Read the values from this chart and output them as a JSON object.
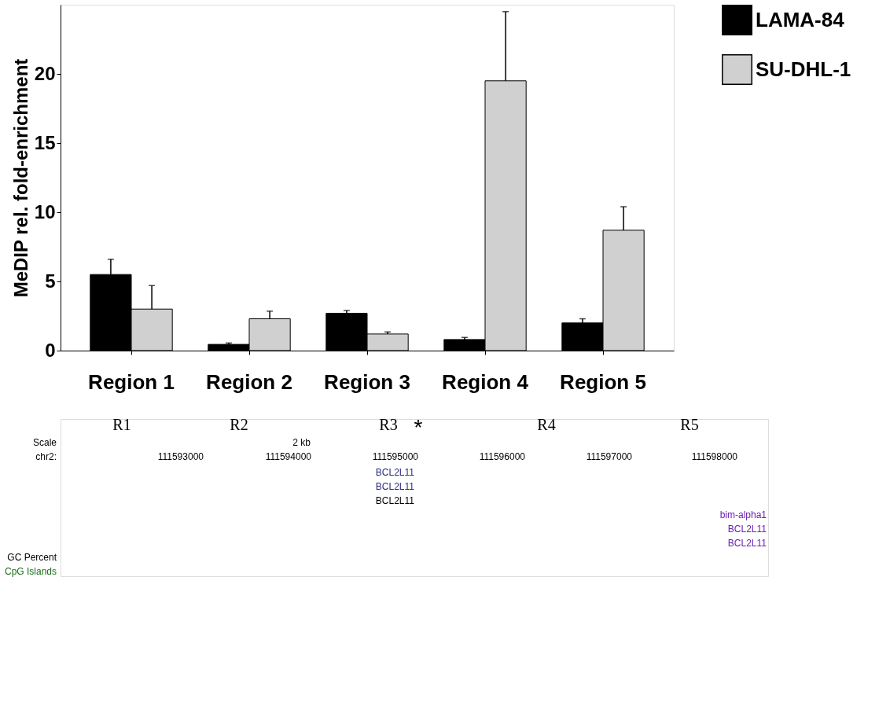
{
  "chart_data": [
    {
      "type": "bar",
      "ylabel": "MeDIP rel. fold-enrichment",
      "categories": [
        "Region 1",
        "Region 2",
        "Region 3",
        "Region 4",
        "Region 5"
      ],
      "series": [
        {
          "name": "LAMA-84",
          "color": "#000000",
          "values": [
            5.5,
            0.45,
            2.7,
            0.8,
            2.0
          ],
          "errors": [
            [
              5.5,
              6.6
            ],
            [
              0.45,
              0.55
            ],
            [
              2.7,
              2.9
            ],
            [
              0.8,
              0.95
            ],
            [
              2.0,
              2.3
            ]
          ]
        },
        {
          "name": "SU-DHL-1",
          "color": "#d0d0d0",
          "values": [
            3.0,
            2.3,
            1.2,
            19.5,
            8.7
          ],
          "errors": [
            [
              3.0,
              4.7
            ],
            [
              2.3,
              2.85
            ],
            [
              1.2,
              1.35
            ],
            [
              19.5,
              24.5
            ],
            [
              8.7,
              10.4
            ]
          ]
        }
      ],
      "ylim": [
        0,
        25
      ],
      "yticks": [
        0,
        5,
        10,
        15,
        20
      ],
      "grid": false,
      "legend": "top right"
    },
    {
      "type": "other",
      "annotations": [
        "R1",
        "R2",
        "R3",
        "R4",
        "R5",
        "*",
        "Scale",
        "2 kb",
        "chr2:",
        "111593000",
        "111594000",
        "111595000",
        "111596000",
        "111597000",
        "111598000",
        "BCL2L11",
        "BCL2L11",
        "BCL2L11",
        "bim-alpha1",
        "BCL2L11",
        "BCL2L11",
        "GC Percent",
        "CpG Islands"
      ]
    }
  ]
}
